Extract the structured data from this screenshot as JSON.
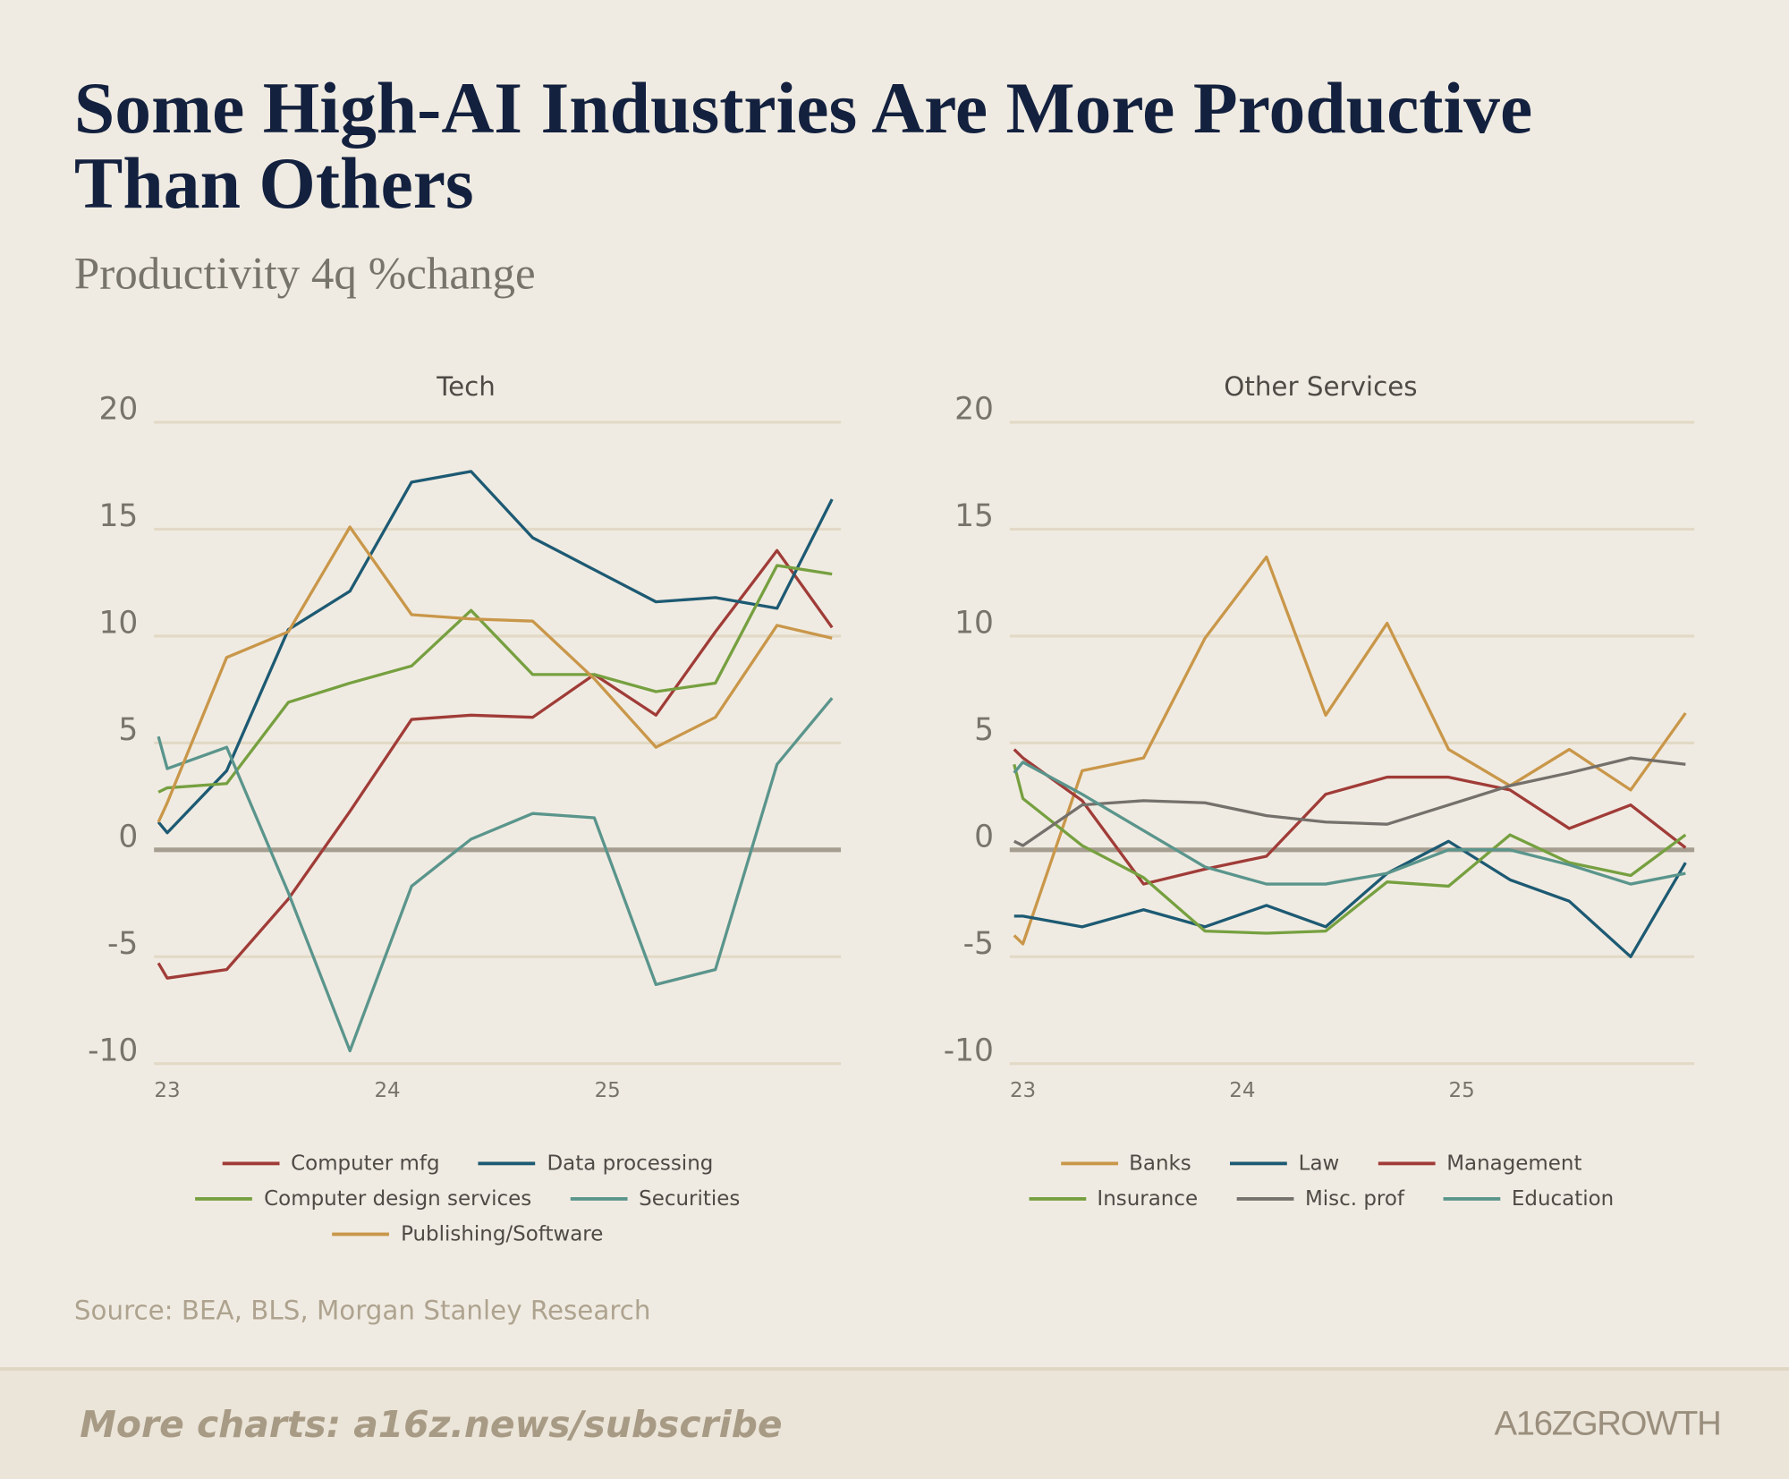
{
  "title": "Some High-AI Industries Are More Productive Than Others",
  "subtitle": "Productivity 4q %change",
  "source": "Source: BEA, BLS, Morgan Stanley Research",
  "footer": "More charts: a16z.news/subscribe",
  "logo": "A16ZGROWTH",
  "chart_data": [
    {
      "type": "line",
      "title": "Tech",
      "x": [
        22.96,
        23,
        23.27,
        23.55,
        23.83,
        24.11,
        24.38,
        24.66,
        24.94,
        25.22,
        25.49,
        25.77,
        26.02
      ],
      "xlim": [
        22.94,
        26.06
      ],
      "xticks": [
        23,
        24,
        25
      ],
      "ylim": [
        -10,
        20
      ],
      "yticks": [
        -10,
        -5,
        0,
        5,
        10,
        15,
        20
      ],
      "grid": true,
      "series": [
        {
          "name": "Computer mfg",
          "color": "#a03c38",
          "values": [
            -5.3,
            -6.0,
            -5.6,
            -2.3,
            1.8,
            6.1,
            6.3,
            6.2,
            8.2,
            6.3,
            10.2,
            14.0,
            10.4
          ]
        },
        {
          "name": "Data processing",
          "color": "#1d5a73",
          "values": [
            1.3,
            0.8,
            3.7,
            10.3,
            12.1,
            17.2,
            17.7,
            14.6,
            13.1,
            11.6,
            11.8,
            11.3,
            16.4
          ]
        },
        {
          "name": "Computer design services",
          "color": "#76a040",
          "values": [
            2.7,
            2.9,
            3.1,
            6.9,
            7.8,
            8.6,
            11.2,
            8.2,
            8.2,
            7.4,
            7.8,
            13.3,
            12.9
          ]
        },
        {
          "name": "Securities",
          "color": "#5a958c",
          "values": [
            5.3,
            3.8,
            4.8,
            -2.0,
            -9.4,
            -1.7,
            0.5,
            1.7,
            1.5,
            -6.3,
            -5.6,
            4.0,
            7.1
          ]
        },
        {
          "name": "Publishing/Software",
          "color": "#c9974a",
          "values": [
            1.3,
            2.2,
            9.0,
            10.2,
            15.1,
            11.0,
            10.8,
            10.7,
            8.0,
            4.8,
            6.2,
            10.5,
            9.9
          ]
        }
      ]
    },
    {
      "type": "line",
      "title": "Other Services",
      "x": [
        22.96,
        23,
        23.27,
        23.55,
        23.83,
        24.11,
        24.38,
        24.66,
        24.94,
        25.22,
        25.49,
        25.77,
        26.02
      ],
      "xlim": [
        22.94,
        26.06
      ],
      "xticks": [
        23,
        24,
        25
      ],
      "ylim": [
        -10,
        20
      ],
      "yticks": [
        -10,
        -5,
        0,
        5,
        10,
        15,
        20
      ],
      "grid": true,
      "series": [
        {
          "name": "Banks",
          "color": "#c9974a",
          "values": [
            -4.0,
            -4.4,
            3.7,
            4.3,
            9.9,
            13.7,
            6.3,
            10.6,
            4.7,
            3.0,
            4.7,
            2.8,
            6.4
          ]
        },
        {
          "name": "Law",
          "color": "#1d5a73",
          "values": [
            -3.1,
            -3.1,
            -3.6,
            -2.8,
            -3.6,
            -2.6,
            -3.6,
            -1.1,
            0.4,
            -1.4,
            -2.4,
            -5.0,
            -0.6
          ]
        },
        {
          "name": "Management",
          "color": "#a03c38",
          "values": [
            4.7,
            4.3,
            2.3,
            -1.6,
            -0.9,
            -0.3,
            2.6,
            3.4,
            3.4,
            2.8,
            1.0,
            2.1,
            0.1
          ]
        },
        {
          "name": "Insurance",
          "color": "#76a040",
          "values": [
            4.0,
            2.4,
            0.2,
            -1.3,
            -3.8,
            -3.9,
            -3.8,
            -1.5,
            -1.7,
            0.7,
            -0.6,
            -1.2,
            0.7
          ]
        },
        {
          "name": "Misc. prof",
          "color": "#74706b",
          "values": [
            0.4,
            0.2,
            2.1,
            2.3,
            2.2,
            1.6,
            1.3,
            1.2,
            2.1,
            3.0,
            3.6,
            4.3,
            4.0
          ]
        },
        {
          "name": "Education",
          "color": "#5a958c",
          "values": [
            3.6,
            4.1,
            2.6,
            0.9,
            -0.8,
            -1.6,
            -1.6,
            -1.1,
            0.0,
            0.0,
            -0.7,
            -1.6,
            -1.1
          ]
        }
      ]
    }
  ]
}
